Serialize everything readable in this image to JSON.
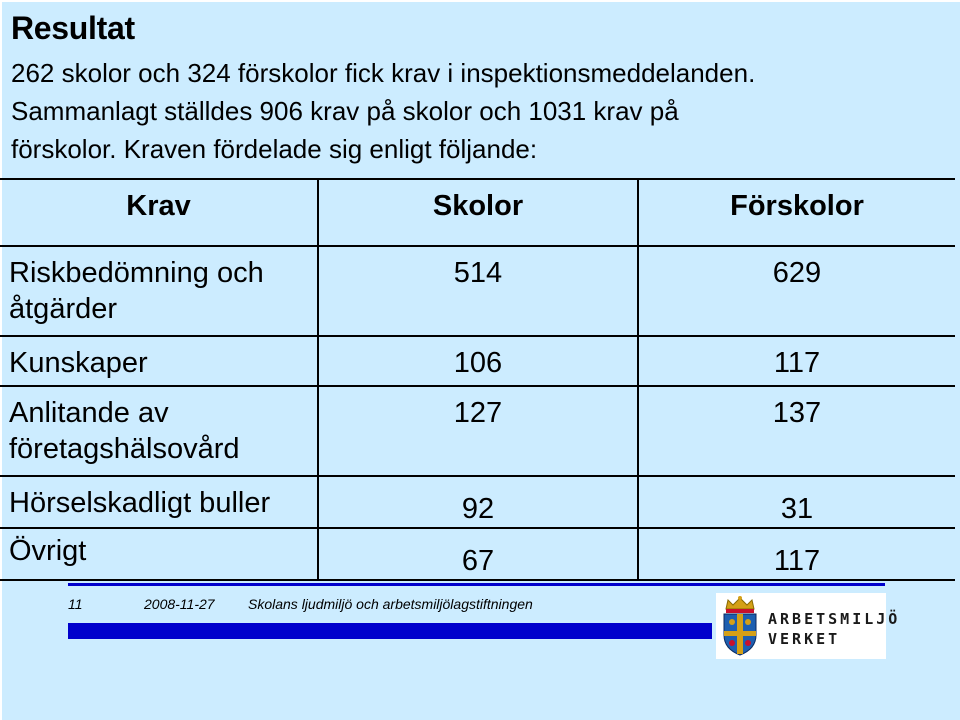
{
  "slide": {
    "title": "Resultat",
    "intro_line1": "262 skolor och 324 förskolor fick krav i inspektionsmeddelanden.",
    "intro_line2": "Sammanlagt ställdes 906 krav på skolor och 1031 krav på",
    "intro_line3": "förskolor. Kraven fördelade sig enligt följande:"
  },
  "table": {
    "headers": [
      "Krav",
      "Skolor",
      "Förskolor"
    ],
    "rows": [
      {
        "krav_line1": "Riskbedömning och",
        "krav_line2": "åtgärder",
        "skolor": "514",
        "forskolor": "629"
      },
      {
        "krav_line1": "Kunskaper",
        "krav_line2": "",
        "skolor": "106",
        "forskolor": "117"
      },
      {
        "krav_line1": "Anlitande av",
        "krav_line2": "företagshälsovård",
        "skolor": "127",
        "forskolor": "137"
      },
      {
        "krav_line1": "Hörselskadligt buller",
        "krav_line2": "",
        "skolor": "92",
        "forskolor": "31"
      },
      {
        "krav_line1": "Övrigt",
        "krav_line2": "",
        "skolor": "67",
        "forskolor": "117"
      }
    ]
  },
  "footer": {
    "page_number": "11",
    "date": "2008-11-27",
    "caption": "Skolans ljudmiljö och arbetsmiljölagstiftningen"
  },
  "logo": {
    "line1": "ARBETSMILJÖ",
    "line2": "VERKET",
    "icon": "crowned-shield-emblem"
  },
  "colors": {
    "background": "#ccecff",
    "footer_bar": "#0000cc"
  }
}
